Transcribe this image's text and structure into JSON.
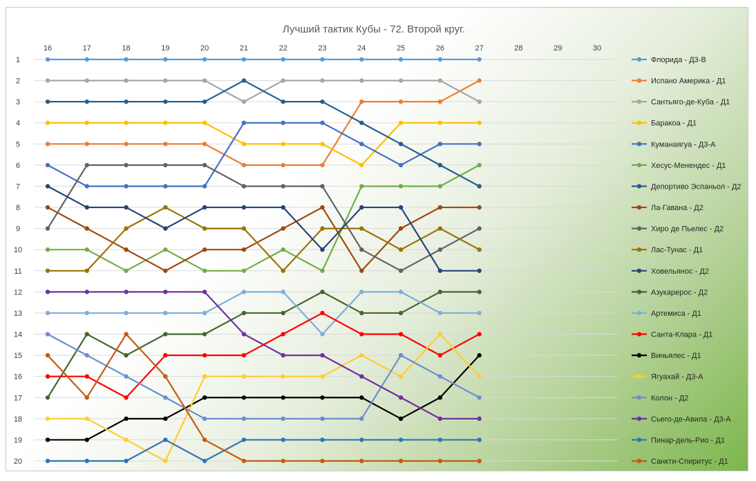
{
  "chart_data": {
    "type": "line",
    "title": "Лучший тактик Кубы - 72. Второй круг.",
    "x": [
      16,
      17,
      18,
      19,
      20,
      21,
      22,
      23,
      24,
      25,
      26,
      27
    ],
    "x_ticks": [
      "16",
      "17",
      "18",
      "19",
      "20",
      "21",
      "22",
      "23",
      "24",
      "25",
      "26",
      "27",
      "28",
      "29",
      "30"
    ],
    "y_ticks": [
      "1",
      "2",
      "3",
      "4",
      "5",
      "6",
      "7",
      "8",
      "9",
      "10",
      "11",
      "12",
      "13",
      "14",
      "15",
      "16",
      "17",
      "18",
      "19",
      "20"
    ],
    "xlim": [
      16,
      30
    ],
    "ylim": [
      1,
      20
    ],
    "y_reversed": true,
    "grid": "horizontal",
    "legend_position": "right",
    "series": [
      {
        "name": "Флорида - Д3-В",
        "color": "#5b9bd5",
        "values": [
          1,
          1,
          1,
          1,
          1,
          1,
          1,
          1,
          1,
          1,
          1,
          1
        ]
      },
      {
        "name": "Испано Америка - Д1",
        "color": "#ed7d31",
        "values": [
          5,
          5,
          5,
          5,
          5,
          6,
          6,
          6,
          3,
          3,
          3,
          2
        ]
      },
      {
        "name": "Сантьяго-де-Куба - Д1",
        "color": "#a5a5a5",
        "values": [
          2,
          2,
          2,
          2,
          2,
          3,
          2,
          2,
          2,
          2,
          2,
          3
        ]
      },
      {
        "name": "Баракоа - Д1",
        "color": "#ffc000",
        "values": [
          4,
          4,
          4,
          4,
          4,
          5,
          5,
          5,
          6,
          4,
          4,
          4
        ]
      },
      {
        "name": "Куманаягуа - Д3-А",
        "color": "#4472c4",
        "values": [
          6,
          7,
          7,
          7,
          7,
          4,
          4,
          4,
          5,
          6,
          5,
          5
        ]
      },
      {
        "name": "Хесус-Менендес - Д1",
        "color": "#70ad47",
        "values": [
          10,
          10,
          11,
          10,
          11,
          11,
          10,
          11,
          7,
          7,
          7,
          6
        ]
      },
      {
        "name": "Депортиво Эспаньол - Д2",
        "color": "#255e91",
        "values": [
          3,
          3,
          3,
          3,
          3,
          2,
          3,
          3,
          4,
          5,
          6,
          7
        ]
      },
      {
        "name": "Ла-Гавана - Д2",
        "color": "#9e480e",
        "values": [
          8,
          9,
          10,
          11,
          10,
          10,
          9,
          8,
          11,
          9,
          8,
          8
        ]
      },
      {
        "name": "Хиро де Пьелес - Д2",
        "color": "#636363",
        "values": [
          9,
          6,
          6,
          6,
          6,
          7,
          7,
          7,
          10,
          11,
          10,
          9
        ]
      },
      {
        "name": "Лас-Тунас - Д1",
        "color": "#997300",
        "values": [
          11,
          11,
          9,
          8,
          9,
          9,
          11,
          9,
          9,
          10,
          9,
          10
        ]
      },
      {
        "name": "Ховельянос - Д2",
        "color": "#264478",
        "values": [
          7,
          8,
          8,
          9,
          8,
          8,
          8,
          10,
          8,
          8,
          11,
          11
        ]
      },
      {
        "name": "Азукарерос - Д2",
        "color": "#43682b",
        "values": [
          17,
          14,
          15,
          14,
          14,
          13,
          13,
          12,
          13,
          13,
          12,
          12
        ]
      },
      {
        "name": "Артемиса - Д1",
        "color": "#7cafdd",
        "values": [
          13,
          13,
          13,
          13,
          13,
          12,
          12,
          14,
          12,
          12,
          13,
          13
        ]
      },
      {
        "name": "Санта-Клара - Д1",
        "color": "#ff0000",
        "values": [
          16,
          16,
          17,
          15,
          15,
          15,
          14,
          13,
          14,
          14,
          15,
          14
        ]
      },
      {
        "name": "Виньялес - Д1",
        "color": "#000000",
        "values": [
          19,
          19,
          18,
          18,
          17,
          17,
          17,
          17,
          17,
          18,
          17,
          15
        ]
      },
      {
        "name": "Ягуахай - Д3-А",
        "color": "#ffcd33",
        "values": [
          18,
          18,
          19,
          20,
          16,
          16,
          16,
          16,
          15,
          16,
          14,
          16
        ]
      },
      {
        "name": "Колон - Д2",
        "color": "#698ed0",
        "values": [
          14,
          15,
          16,
          17,
          18,
          18,
          18,
          18,
          18,
          15,
          16,
          17
        ]
      },
      {
        "name": "Сьего-де-Авила - Д3-А",
        "color": "#7030a0",
        "values": [
          12,
          12,
          12,
          12,
          12,
          14,
          15,
          15,
          16,
          17,
          18,
          18
        ]
      },
      {
        "name": "Пинар-дель-Рио - Д1",
        "color": "#2e75b6",
        "values": [
          20,
          20,
          20,
          19,
          20,
          19,
          19,
          19,
          19,
          19,
          19,
          19
        ]
      },
      {
        "name": "Санкти-Спиритус - Д1",
        "color": "#c55a11",
        "values": [
          15,
          17,
          14,
          16,
          19,
          20,
          20,
          20,
          20,
          20,
          20,
          20
        ]
      }
    ]
  }
}
